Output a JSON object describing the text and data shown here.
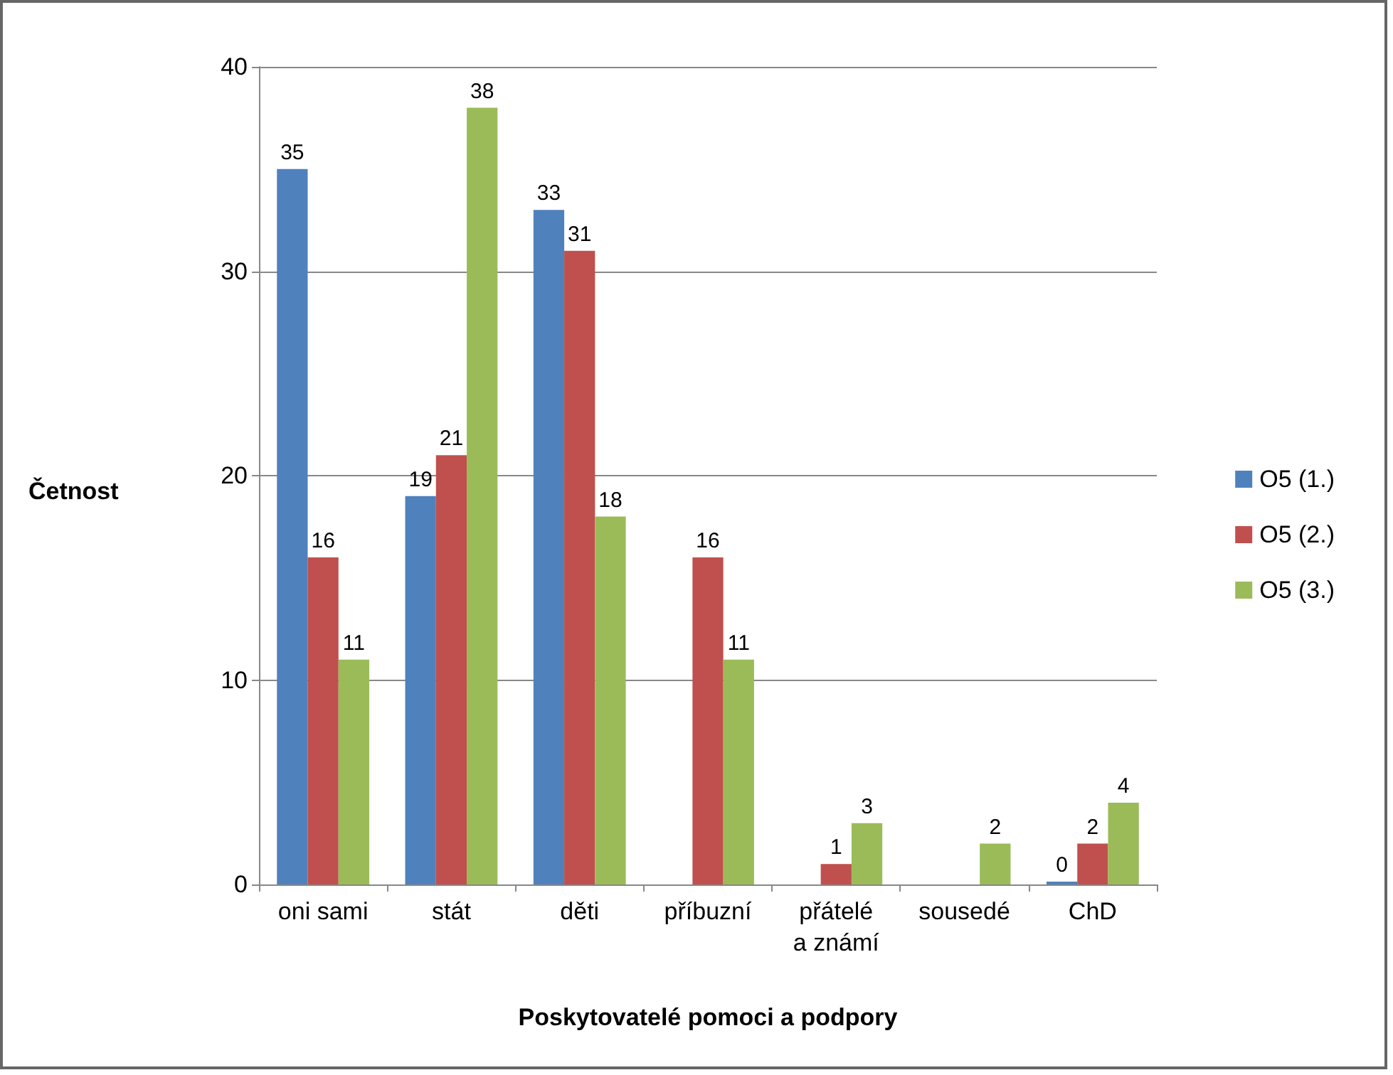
{
  "chart_data": {
    "type": "bar",
    "xlabel": "Poskytovatelé pomoci a podpory",
    "ylabel": "Četnost",
    "categories": [
      "oni sami",
      "stát",
      "děti",
      "příbuzní",
      "přátelé\na známí",
      "sousedé",
      "ChD"
    ],
    "series": [
      {
        "name": "O5 (1.)",
        "color": "#4f81bd",
        "values": [
          35,
          19,
          33,
          null,
          null,
          null,
          0
        ]
      },
      {
        "name": "O5 (2.)",
        "color": "#c0504d",
        "values": [
          16,
          21,
          31,
          16,
          1,
          null,
          2
        ]
      },
      {
        "name": "O5 (3.)",
        "color": "#9bbb59",
        "values": [
          11,
          38,
          18,
          11,
          3,
          2,
          4
        ]
      }
    ],
    "ylim": [
      0,
      40
    ],
    "yticks": [
      0,
      10,
      20,
      30,
      40
    ],
    "grid": "y",
    "legend": "right",
    "data_labels": true
  }
}
